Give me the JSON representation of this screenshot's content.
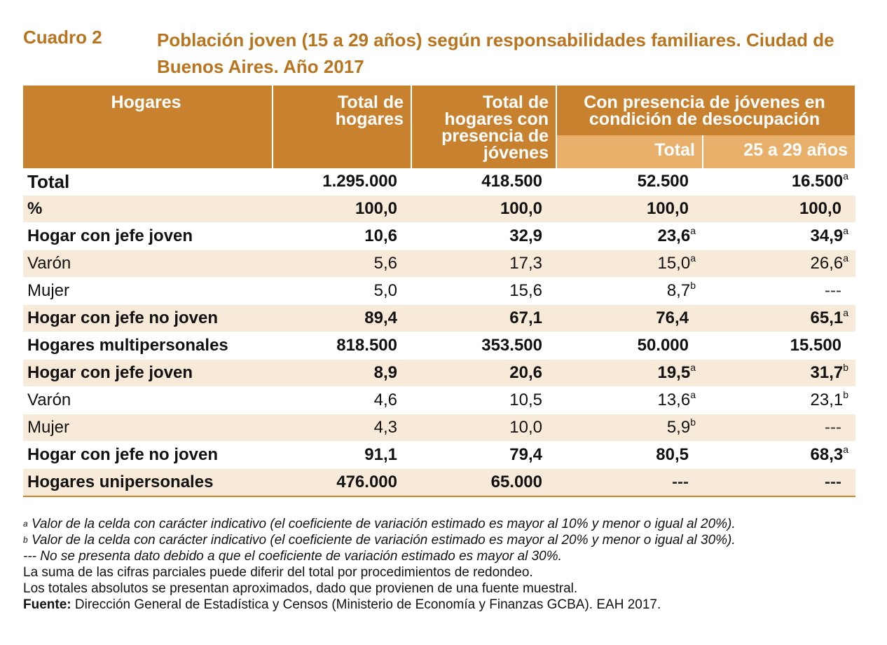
{
  "title": {
    "label": "Cuadro 2",
    "text": "Población joven (15 a 29 años) según responsabilidades familiares. Ciudad de Buenos Aires. Año 2017"
  },
  "header": {
    "hogares": "Hogares",
    "total_hogares": "Total de hogares",
    "total_presencia": "Total de hogares con presencia de jóvenes",
    "desocupacion": "Con presencia de jóvenes en condición de desocupación",
    "total": "Total",
    "edad": "25 a 29 años"
  },
  "rows": [
    {
      "label": "Total",
      "v1": "1.295.000",
      "v2": "418.500",
      "v3": "52.500",
      "v3s": "",
      "v4": "16.500",
      "v4s": "a"
    },
    {
      "label": "%",
      "v1": "100,0",
      "v2": "100,0",
      "v3": "100,0",
      "v3s": "",
      "v4": "100,0",
      "v4s": ""
    },
    {
      "label": "Hogar con jefe joven",
      "v1": "10,6",
      "v2": "32,9",
      "v3": "23,6",
      "v3s": "a",
      "v4": "34,9",
      "v4s": "a"
    },
    {
      "label": "Varón",
      "v1": "5,6",
      "v2": "17,3",
      "v3": "15,0",
      "v3s": "a",
      "v4": "26,6",
      "v4s": "a"
    },
    {
      "label": "Mujer",
      "v1": "5,0",
      "v2": "15,6",
      "v3": "8,7",
      "v3s": "b",
      "v4": "---",
      "v4s": ""
    },
    {
      "label": "Hogar con jefe no joven",
      "v1": "89,4",
      "v2": "67,1",
      "v3": "76,4",
      "v3s": "",
      "v4": "65,1",
      "v4s": "a"
    },
    {
      "label": "Hogares multipersonales",
      "v1": "818.500",
      "v2": "353.500",
      "v3": "50.000",
      "v3s": "",
      "v4": "15.500",
      "v4s": ""
    },
    {
      "label": "Hogar con jefe joven",
      "v1": "8,9",
      "v2": "20,6",
      "v3": "19,5",
      "v3s": "a",
      "v4": "31,7",
      "v4s": "b"
    },
    {
      "label": "Varón",
      "v1": "4,6",
      "v2": "10,5",
      "v3": "13,6",
      "v3s": "a",
      "v4": "23,1",
      "v4s": "b"
    },
    {
      "label": "Mujer",
      "v1": "4,3",
      "v2": "10,0",
      "v3": "5,9",
      "v3s": "b",
      "v4": "---",
      "v4s": ""
    },
    {
      "label": "Hogar con jefe no joven",
      "v1": "91,1",
      "v2": "79,4",
      "v3": "80,5",
      "v3s": "",
      "v4": "68,3",
      "v4s": "a"
    },
    {
      "label": "Hogares unipersonales",
      "v1": "476.000",
      "v2": "65.000",
      "v3": "---",
      "v3s": "",
      "v4": "---",
      "v4s": ""
    }
  ],
  "notes": {
    "a_mark": "a",
    "a": " Valor de la celda con carácter indicativo (el coeficiente de variación estimado es mayor al 10% y menor o igual al 20%).",
    "b_mark": "b",
    "b": " Valor de la celda con carácter indicativo (el coeficiente de variación estimado es mayor al 20% y menor o igual al 30%).",
    "dash": " --- No se presenta dato debido a que el coeficiente de variación estimado es mayor al 30%.",
    "suma": "La suma de las cifras parciales puede diferir del total por procedimientos de redondeo.",
    "totales": "Los totales absolutos se presentan aproximados, dado que provienen de una fuente muestral.",
    "fuente_label": "Fuente:",
    "fuente": " Dirección General de Estadística y Censos (Ministerio de Economía y Finanzas GCBA). EAH 2017."
  }
}
